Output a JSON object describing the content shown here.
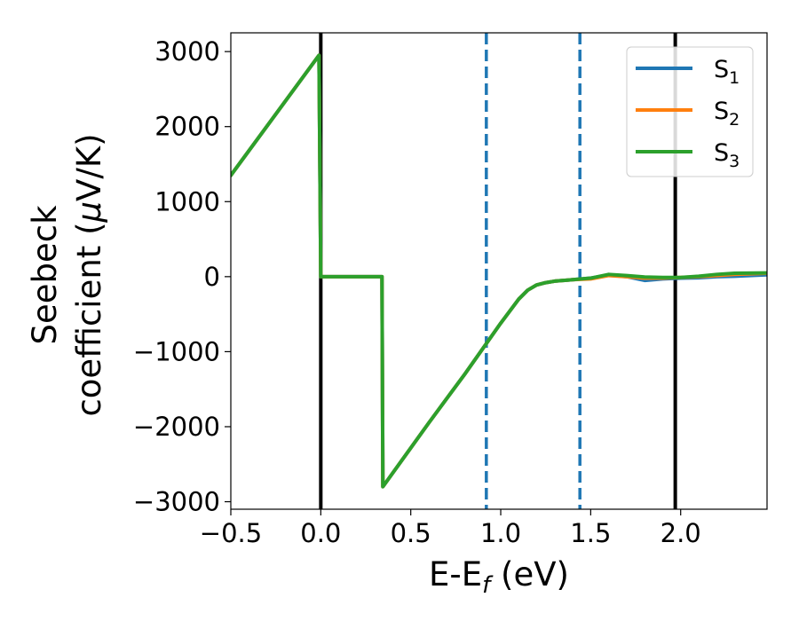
{
  "chart_data": {
    "type": "line",
    "xlabel": "E-E",
    "xlabel_sub": "f",
    "xlabel_unit": " (eV)",
    "ylabel_line1": "Seebeck",
    "ylabel_line2": "coefficient  (",
    "ylabel_mu": "μ",
    "ylabel_unit": "V/K)",
    "xlim": [
      -0.5,
      2.48
    ],
    "ylim": [
      -3100,
      3250
    ],
    "x_ticks": [
      -0.5,
      0.0,
      0.5,
      1.0,
      1.5,
      2.0
    ],
    "x_tick_labels": [
      "−0.5",
      "0.0",
      "0.5",
      "1.0",
      "1.5",
      "2.0"
    ],
    "y_ticks": [
      -3000,
      -2000,
      -1000,
      0,
      1000,
      2000,
      3000
    ],
    "y_tick_labels": [
      "−3000",
      "−2000",
      "−1000",
      "0",
      "1000",
      "2000",
      "3000"
    ],
    "grid": false,
    "legend_position": "top-right",
    "vertical_lines": [
      {
        "x": 0.0,
        "style": "solid",
        "color": "#000000"
      },
      {
        "x": 0.92,
        "style": "dashed",
        "color": "#1f77b4"
      },
      {
        "x": 1.44,
        "style": "dashed",
        "color": "#1f77b4"
      },
      {
        "x": 1.97,
        "style": "solid",
        "color": "#000000"
      }
    ],
    "series": [
      {
        "name": "S",
        "sub": "1",
        "color": "#1f77b4",
        "x": [
          -0.5,
          -0.01,
          0.0,
          0.34,
          0.345,
          0.6,
          0.8,
          1.0,
          1.1,
          1.15,
          1.2,
          1.25,
          1.3,
          1.4,
          1.5,
          1.6,
          1.7,
          1.8,
          1.9,
          2.0,
          2.1,
          2.2,
          2.3,
          2.48
        ],
        "y": [
          1350,
          2950,
          0,
          0,
          -2800,
          -1950,
          -1300,
          -620,
          -300,
          -180,
          -110,
          -80,
          -60,
          -40,
          -20,
          20,
          0,
          -50,
          -30,
          -20,
          -15,
          0,
          5,
          25
        ]
      },
      {
        "name": "S",
        "sub": "2",
        "color": "#ff7f0e",
        "x": [
          -0.5,
          -0.01,
          0.0,
          0.34,
          0.345,
          0.6,
          0.8,
          1.0,
          1.1,
          1.15,
          1.2,
          1.25,
          1.3,
          1.4,
          1.5,
          1.6,
          1.7,
          1.8,
          1.9,
          2.0,
          2.1,
          2.2,
          2.3,
          2.48
        ],
        "y": [
          1350,
          2950,
          0,
          0,
          -2800,
          -1950,
          -1300,
          -620,
          -300,
          -180,
          -110,
          -80,
          -60,
          -40,
          -30,
          15,
          0,
          -20,
          -20,
          -10,
          0,
          15,
          30,
          45
        ]
      },
      {
        "name": "S",
        "sub": "3",
        "color": "#2ca02c",
        "x": [
          -0.5,
          -0.01,
          0.0,
          0.34,
          0.345,
          0.6,
          0.8,
          1.0,
          1.1,
          1.15,
          1.2,
          1.25,
          1.3,
          1.4,
          1.5,
          1.6,
          1.7,
          1.8,
          1.9,
          2.0,
          2.1,
          2.2,
          2.3,
          2.48
        ],
        "y": [
          1350,
          2950,
          0,
          0,
          -2800,
          -1950,
          -1300,
          -620,
          -300,
          -180,
          -110,
          -80,
          -60,
          -40,
          -20,
          30,
          15,
          -5,
          -10,
          -10,
          5,
          30,
          45,
          50
        ]
      }
    ]
  }
}
